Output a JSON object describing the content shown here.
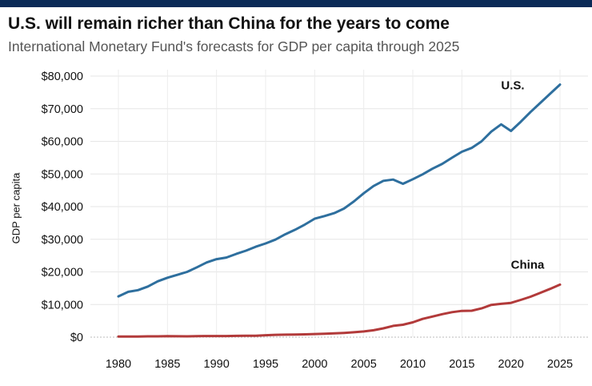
{
  "header": {
    "title": "U.S. will remain richer than China for the years to come",
    "subtitle": "International Monetary Fund's forecasts for GDP per capita through 2025"
  },
  "chart_data": {
    "type": "line",
    "title": "U.S. will remain richer than China for the years to come",
    "subtitle": "International Monetary Fund's forecasts for GDP per capita through 2025",
    "xlabel": "",
    "ylabel": "GDP per capita",
    "xlim": [
      1980,
      2025
    ],
    "ylim": [
      0,
      80000
    ],
    "x_ticks": [
      1980,
      1985,
      1990,
      1995,
      2000,
      2005,
      2010,
      2015,
      2020,
      2025
    ],
    "y_ticks": [
      0,
      10000,
      20000,
      30000,
      40000,
      50000,
      60000,
      70000,
      80000
    ],
    "y_tick_labels": [
      "$0",
      "$10,000",
      "$20,000",
      "$30,000",
      "$40,000",
      "$50,000",
      "$60,000",
      "$70,000",
      "$80,000"
    ],
    "grid": true,
    "x": [
      1980,
      1981,
      1982,
      1983,
      1984,
      1985,
      1986,
      1987,
      1988,
      1989,
      1990,
      1991,
      1992,
      1993,
      1994,
      1995,
      1996,
      1997,
      1998,
      1999,
      2000,
      2001,
      2002,
      2003,
      2004,
      2005,
      2006,
      2007,
      2008,
      2009,
      2010,
      2011,
      2012,
      2013,
      2014,
      2015,
      2016,
      2017,
      2018,
      2019,
      2020,
      2021,
      2022,
      2023,
      2024,
      2025
    ],
    "series": [
      {
        "name": "U.S.",
        "color": "#2e6f9e",
        "values": [
          12500,
          13900,
          14400,
          15500,
          17100,
          18200,
          19100,
          20000,
          21400,
          22900,
          23900,
          24400,
          25500,
          26500,
          27700,
          28700,
          29900,
          31500,
          32900,
          34500,
          36300,
          37100,
          38000,
          39400,
          41600,
          44100,
          46300,
          47900,
          48300,
          47000,
          48400,
          49900,
          51600,
          53100,
          55000,
          56800,
          58000,
          60000,
          63000,
          65200,
          63200,
          66000,
          69000,
          71800,
          74600,
          77400
        ]
      },
      {
        "name": "China",
        "color": "#b23a3a",
        "values": [
          200,
          200,
          200,
          250,
          250,
          300,
          280,
          250,
          300,
          350,
          350,
          350,
          400,
          450,
          450,
          600,
          700,
          750,
          800,
          850,
          950,
          1050,
          1150,
          1300,
          1500,
          1750,
          2100,
          2700,
          3450,
          3800,
          4550,
          5600,
          6300,
          7050,
          7650,
          8050,
          8100,
          8800,
          9900,
          10200,
          10500,
          11400,
          12400,
          13600,
          14800,
          16100
        ]
      }
    ],
    "annotations": [
      {
        "text": "U.S.",
        "x": 2019,
        "y": 76000
      },
      {
        "text": "China",
        "x": 2020,
        "y": 21000
      }
    ]
  }
}
